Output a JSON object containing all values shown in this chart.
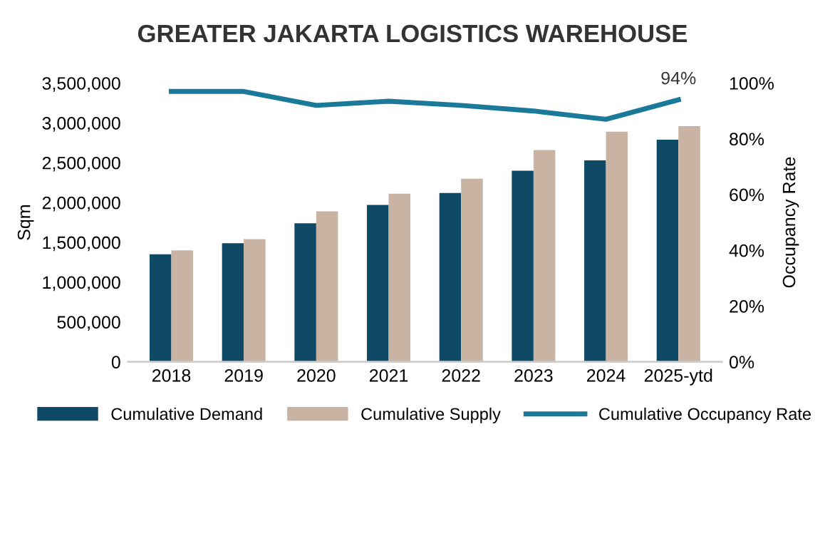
{
  "chart_data": {
    "type": "bar",
    "title": "GREATER JAKARTA LOGISTICS WAREHOUSE",
    "ylabel": "Sqm",
    "y2label": "Occupancy Rate",
    "categories": [
      "2018",
      "2019",
      "2020",
      "2021",
      "2022",
      "2023",
      "2024",
      "2025-ytd"
    ],
    "series": [
      {
        "name": "Cumulative Demand",
        "color": "#0e4a66",
        "values": [
          1350000,
          1490000,
          1740000,
          1970000,
          2120000,
          2400000,
          2530000,
          2790000
        ]
      },
      {
        "name": "Cumulative Supply",
        "color": "#c9b3a3",
        "values": [
          1400000,
          1540000,
          1890000,
          2110000,
          2300000,
          2660000,
          2890000,
          2960000
        ]
      },
      {
        "name": "Cumulative Occupancy Rate",
        "type": "line",
        "axis": "y2",
        "color": "#1b7a9a",
        "values": [
          97,
          97,
          92,
          93.5,
          92,
          90,
          87,
          94
        ],
        "value_labels": [
          null,
          null,
          null,
          null,
          null,
          null,
          null,
          "94%"
        ]
      }
    ],
    "ylim": [
      0,
      3500000
    ],
    "yticks": [
      {
        "value": 0,
        "label": "0"
      },
      {
        "value": 500000,
        "label": "500,000"
      },
      {
        "value": 1000000,
        "label": "1,000,000"
      },
      {
        "value": 1500000,
        "label": "1,500,000"
      },
      {
        "value": 2000000,
        "label": "2,000,000"
      },
      {
        "value": 2500000,
        "label": "2,500,000"
      },
      {
        "value": 3000000,
        "label": "3,000,000"
      },
      {
        "value": 3500000,
        "label": "3,500,000"
      }
    ],
    "y2lim": [
      0,
      100
    ],
    "y2ticks": [
      {
        "value": 0,
        "label": "0%"
      },
      {
        "value": 20,
        "label": "20%"
      },
      {
        "value": 40,
        "label": "40%"
      },
      {
        "value": 60,
        "label": "60%"
      },
      {
        "value": 80,
        "label": "80%"
      },
      {
        "value": 100,
        "label": "100%"
      }
    ],
    "legend": "bottom",
    "grid": false
  }
}
